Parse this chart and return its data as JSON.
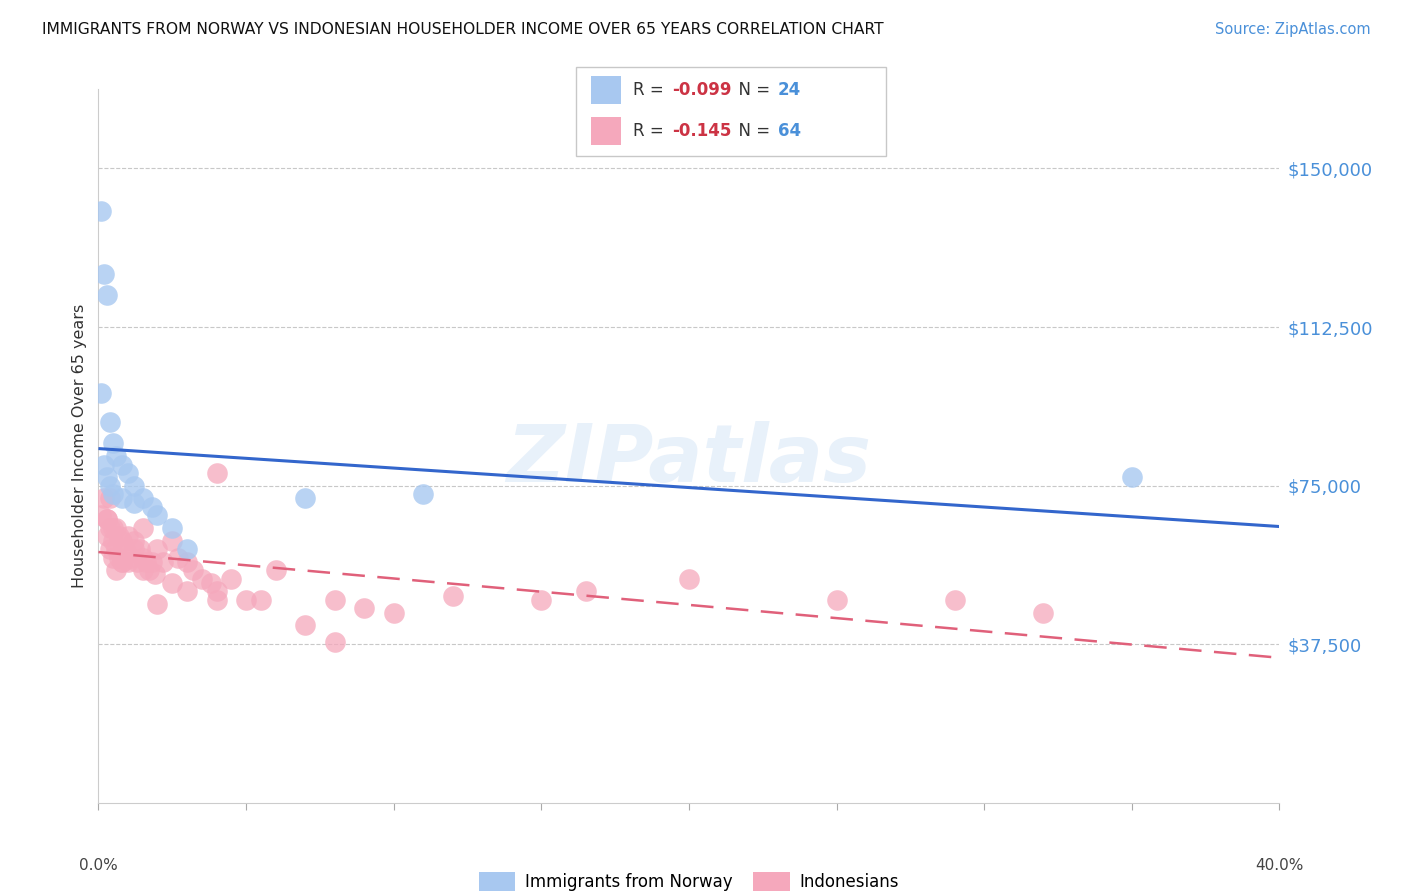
{
  "title": "IMMIGRANTS FROM NORWAY VS INDONESIAN HOUSEHOLDER INCOME OVER 65 YEARS CORRELATION CHART",
  "source": "Source: ZipAtlas.com",
  "ylabel": "Householder Income Over 65 years",
  "ytick_values": [
    37500,
    75000,
    112500,
    150000
  ],
  "ytick_labels": [
    "$37,500",
    "$75,000",
    "$112,500",
    "$150,000"
  ],
  "ylim": [
    0,
    168750
  ],
  "xlim": [
    0.0,
    0.4
  ],
  "norway_R": -0.099,
  "norway_N": 24,
  "indonesian_R": -0.145,
  "indonesian_N": 64,
  "norway_color": "#a8c8f0",
  "indonesian_color": "#f5a8bc",
  "norway_line_color": "#3366cc",
  "indonesian_line_color": "#e0607a",
  "watermark": "ZIPatlas",
  "norway_x": [
    0.001,
    0.002,
    0.003,
    0.004,
    0.005,
    0.006,
    0.008,
    0.01,
    0.012,
    0.015,
    0.018,
    0.02,
    0.025,
    0.03,
    0.002,
    0.003,
    0.004,
    0.005,
    0.008,
    0.012,
    0.07,
    0.11,
    0.35,
    0.001
  ],
  "norway_y": [
    140000,
    125000,
    120000,
    90000,
    85000,
    82000,
    80000,
    78000,
    75000,
    72000,
    70000,
    68000,
    65000,
    60000,
    80000,
    77000,
    75000,
    73000,
    72000,
    71000,
    72000,
    73000,
    77000,
    97000
  ],
  "indonesian_x": [
    0.001,
    0.002,
    0.003,
    0.003,
    0.004,
    0.004,
    0.005,
    0.005,
    0.006,
    0.006,
    0.007,
    0.007,
    0.008,
    0.008,
    0.009,
    0.01,
    0.01,
    0.011,
    0.012,
    0.013,
    0.014,
    0.015,
    0.015,
    0.016,
    0.017,
    0.018,
    0.019,
    0.02,
    0.022,
    0.025,
    0.027,
    0.03,
    0.032,
    0.035,
    0.038,
    0.04,
    0.045,
    0.05,
    0.06,
    0.07,
    0.08,
    0.09,
    0.1,
    0.12,
    0.15,
    0.2,
    0.25,
    0.003,
    0.005,
    0.008,
    0.012,
    0.015,
    0.02,
    0.025,
    0.03,
    0.04,
    0.055,
    0.165,
    0.29,
    0.32,
    0.04,
    0.08,
    0.004,
    0.006
  ],
  "indonesian_y": [
    68000,
    72000,
    67000,
    63000,
    65000,
    60000,
    62000,
    58000,
    65000,
    60000,
    63000,
    58000,
    62000,
    57000,
    60000,
    63000,
    57000,
    58000,
    60000,
    57000,
    60000,
    58000,
    55000,
    57000,
    55000,
    57000,
    54000,
    60000,
    57000,
    62000,
    58000,
    57000,
    55000,
    53000,
    52000,
    50000,
    53000,
    48000,
    55000,
    42000,
    48000,
    46000,
    45000,
    49000,
    48000,
    53000,
    48000,
    67000,
    65000,
    57000,
    62000,
    65000,
    47000,
    52000,
    50000,
    48000,
    48000,
    50000,
    48000,
    45000,
    78000,
    38000,
    72000,
    55000
  ]
}
